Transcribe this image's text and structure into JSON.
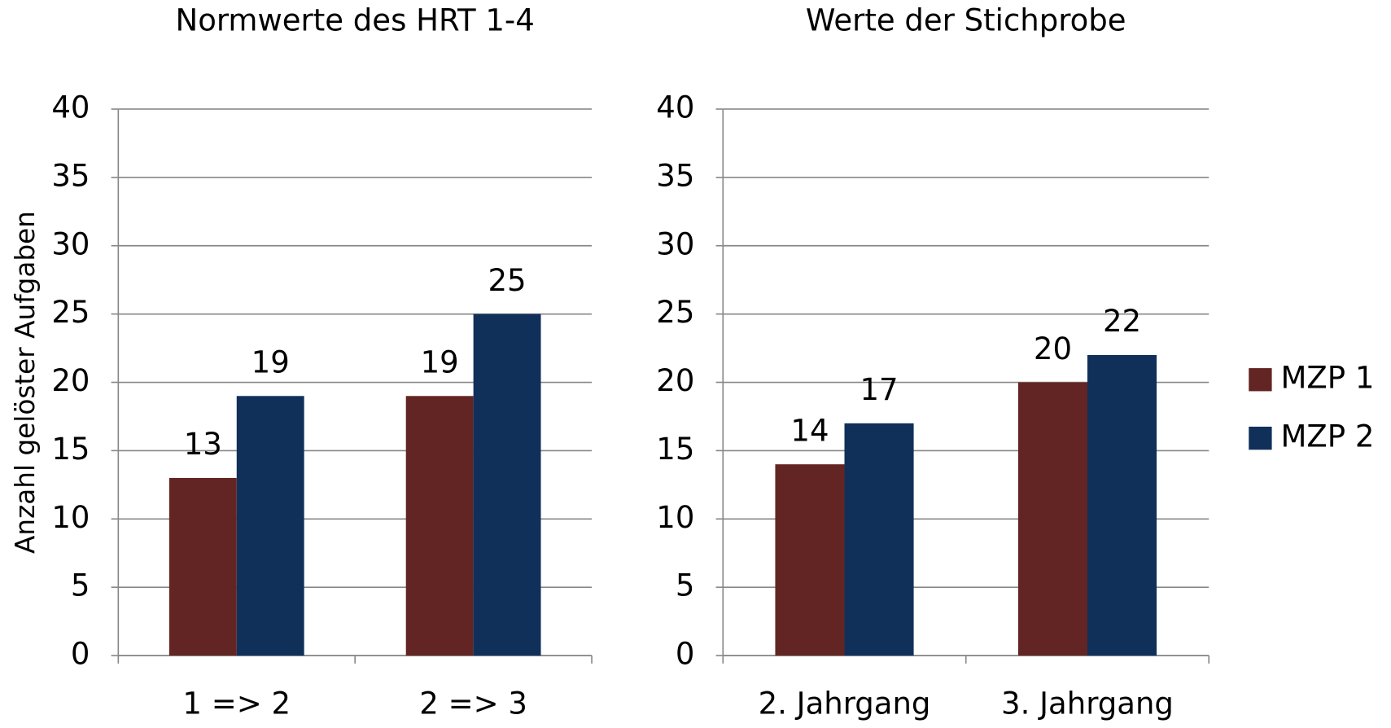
{
  "chart_data": [
    {
      "type": "bar",
      "title": "Normwerte des HRT 1-4",
      "y_label": "Anzahl gelöster Aufgaben",
      "categories": [
        "1 => 2",
        "2 => 3"
      ],
      "series": [
        {
          "name": "MZP 1",
          "color": "#632523",
          "values": [
            13,
            19
          ]
        },
        {
          "name": "MZP 2",
          "color": "#10305a",
          "values": [
            19,
            25
          ]
        }
      ],
      "ylim": [
        0,
        40
      ],
      "yticks": [
        0,
        5,
        10,
        15,
        20,
        25,
        30,
        35,
        40
      ],
      "grid": true
    },
    {
      "type": "bar",
      "title": "Werte der Stichprobe",
      "categories": [
        "2. Jahrgang",
        "3. Jahrgang"
      ],
      "series": [
        {
          "name": "MZP 1",
          "color": "#632523",
          "values": [
            14,
            20
          ]
        },
        {
          "name": "MZP 2",
          "color": "#10305a",
          "values": [
            17,
            22
          ]
        }
      ],
      "ylim": [
        0,
        40
      ],
      "yticks": [
        0,
        5,
        10,
        15,
        20,
        25,
        30,
        35,
        40
      ],
      "grid": true,
      "legend": "right"
    }
  ]
}
